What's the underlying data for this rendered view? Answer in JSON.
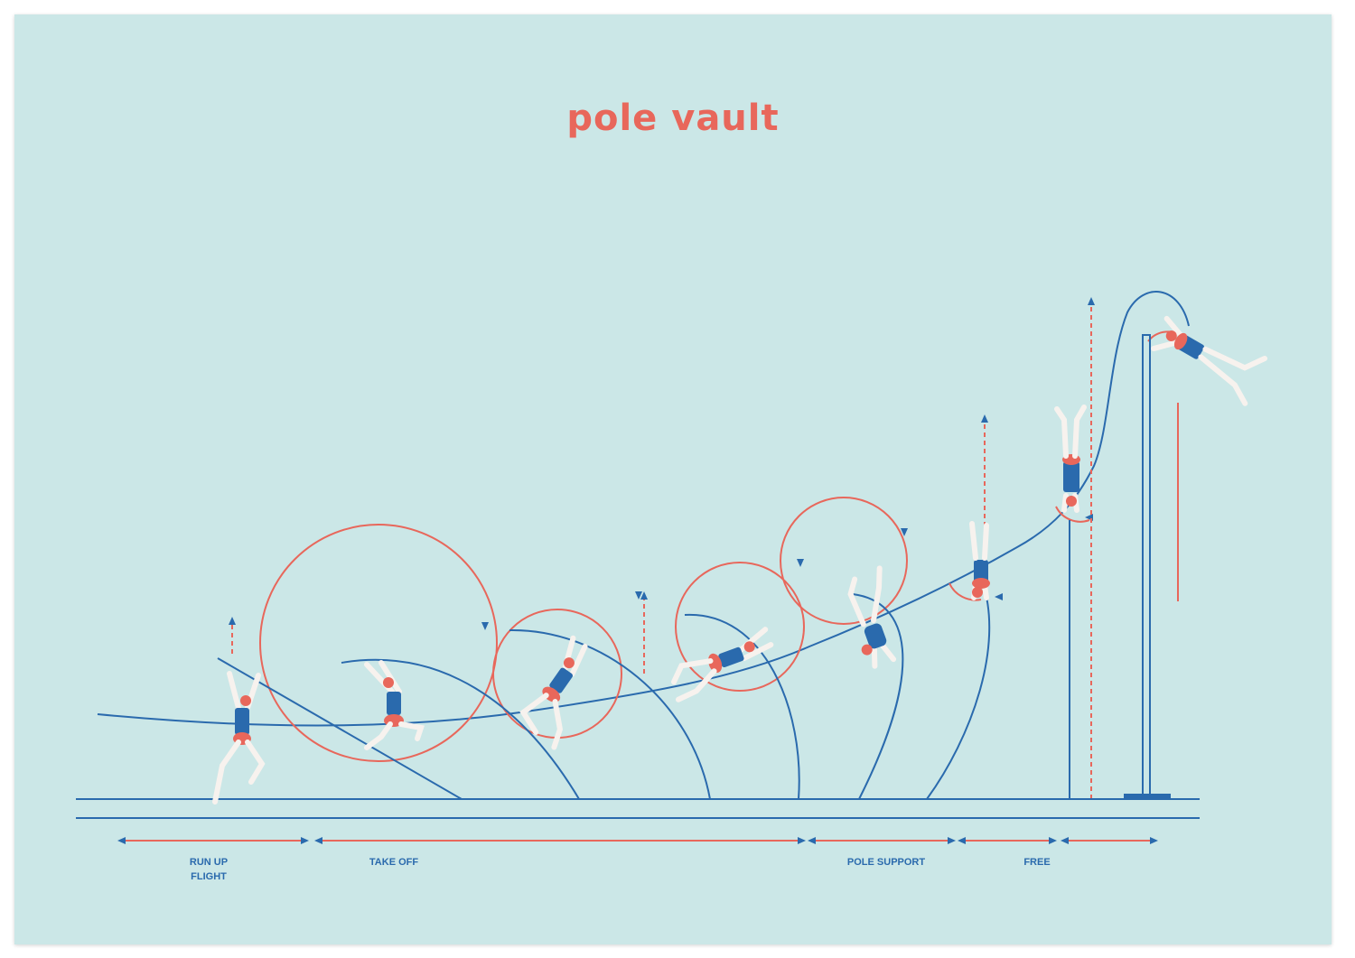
{
  "title": "pole vault",
  "colors": {
    "background": "#cbe7e7",
    "blue": "#2a6aad",
    "red": "#e8675b",
    "skin": "#f7f2ee",
    "title": "#e8675b"
  },
  "phases": [
    {
      "label": "RUN UP\nFLIGHT"
    },
    {
      "label": "TAKE OFF"
    },
    {
      "label": "POLE SUPPORT"
    },
    {
      "label": "FREE"
    }
  ]
}
